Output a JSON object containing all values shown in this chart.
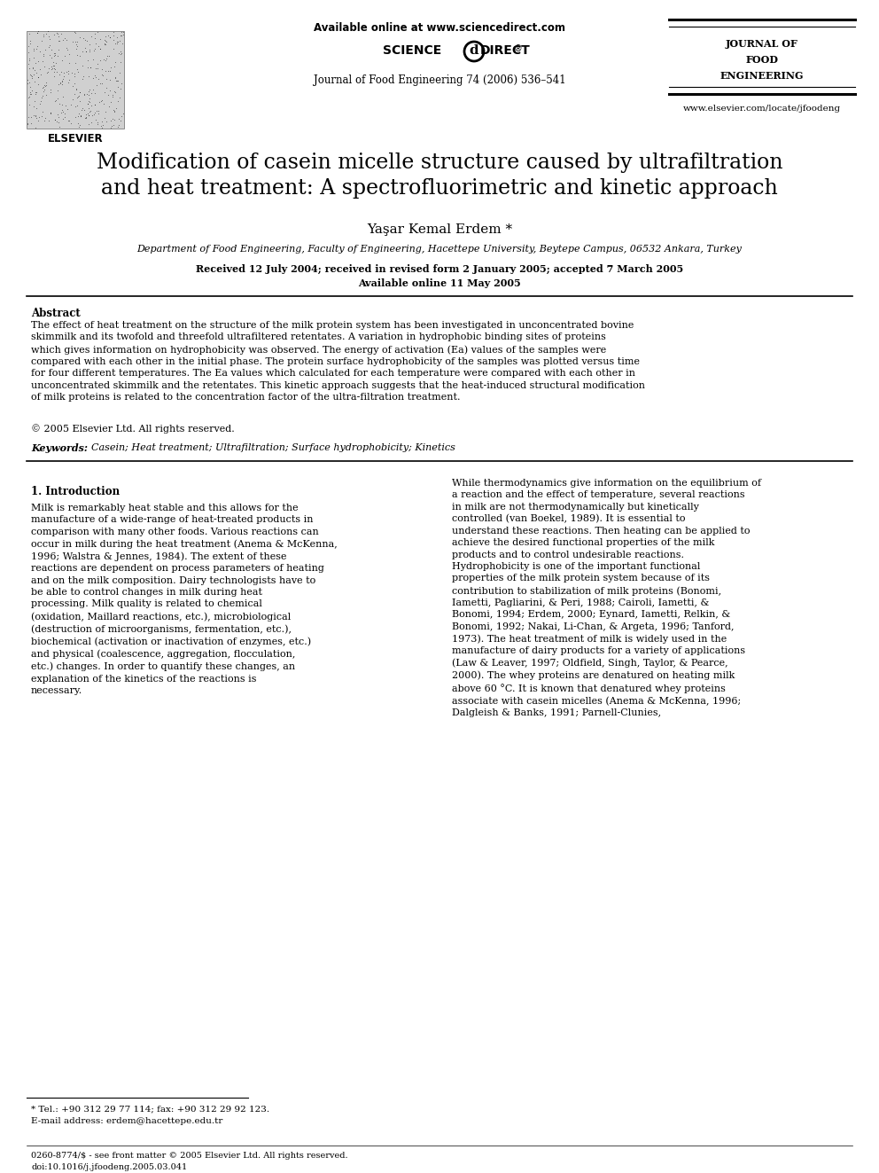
{
  "bg_color": "#ffffff",
  "header": {
    "available_online": "Available online at www.sciencedirect.com",
    "journal_name_line1": "Journal of Food Engineering 74 (2006) 536–541",
    "journal_title_line1": "JOURNAL OF",
    "journal_title_line2": "FOOD",
    "journal_title_line3": "ENGINEERING",
    "website": "www.elsevier.com/locate/jfoodeng",
    "elsevier_label": "ELSEVIER"
  },
  "title": "Modification of casein micelle structure caused by ultrafiltration\nand heat treatment: A spectrofluorimetric and kinetic approach",
  "author": "Yaşar Kemal Erdem *",
  "affiliation": "Department of Food Engineering, Faculty of Engineering, Hacettepe University, Beytepe Campus, 06532 Ankara, Turkey",
  "received": "Received 12 July 2004; received in revised form 2 January 2005; accepted 7 March 2005",
  "available": "Available online 11 May 2005",
  "abstract_title": "Abstract",
  "abstract_text": "The effect of heat treatment on the structure of the milk protein system has been investigated in unconcentrated bovine skimmilk and its twofold and threefold ultrafiltered retentates. A variation in hydrophobic binding sites of proteins which gives information on hydrophobicity was observed. The energy of activation (Ea) values of the samples were compared with each other in the initial phase. The protein surface hydrophobicity of the samples was plotted versus time for four different temperatures. The Ea values which calculated for each temperature were compared with each other in unconcentrated skimmilk and the retentates. This kinetic approach suggests that the heat-induced structural modification of milk proteins is related to the concentration factor of the ultra-filtration treatment.",
  "copyright": "© 2005 Elsevier Ltd. All rights reserved.",
  "keywords_label": "Keywords:",
  "keywords": "Casein; Heat treatment; Ultrafiltration; Surface hydrophobicity; Kinetics",
  "section1_title": "1. Introduction",
  "section1_left": "Milk is remarkably heat stable and this allows for the manufacture of a wide-range of heat-treated products in comparison with many other foods. Various reactions can occur in milk during the heat treatment (Anema & McKenna, 1996; Walstra & Jennes, 1984). The extent of these reactions are dependent on process parameters of heating and on the milk composition. Dairy technologists have to be able to control changes in milk during heat processing. Milk quality is related to chemical (oxidation, Maillard reactions, etc.), microbiological (destruction of microorganisms, fermentation, etc.), biochemical (activation or inactivation of enzymes, etc.) and physical (coalescence, aggregation, flocculation, etc.) changes. In order to quantify these changes, an explanation of the kinetics of the reactions is necessary.",
  "section1_right": "While thermodynamics give information on the equilibrium of a reaction and the effect of temperature, several reactions in milk are not thermodynamically but kinetically controlled (van Boekel, 1989). It is essential to understand these reactions. Then heating can be applied to achieve the desired functional properties of the milk products and to control undesirable reactions. Hydrophobicity is one of the important functional properties of the milk protein system because of its contribution to stabilization of milk proteins (Bonomi, Iametti, Pagliarini, & Peri, 1988; Cairoli, Iametti, & Bonomi, 1994; Erdem, 2000; Eynard, Iametti, Relkin, & Bonomi, 1992; Nakai, Li-Chan, & Argeta, 1996; Tanford, 1973).\n    The heat treatment of milk is widely used in the manufacture of dairy products for a variety of applications (Law & Leaver, 1997; Oldfield, Singh, Taylor, & Pearce, 2000). The whey proteins are denatured on heating milk above 60 °C. It is known that denatured whey proteins associate with casein micelles (Anema & McKenna, 1996; Dalgleish & Banks, 1991; Parnell-Clunies,",
  "footnote_line1": "* Tel.: +90 312 29 77 114; fax: +90 312 29 92 123.",
  "footnote_line2": "E-mail address: erdem@hacettepe.edu.tr",
  "footer_left": "0260-8774/$ - see front matter © 2005 Elsevier Ltd. All rights reserved.",
  "footer_doi": "doi:10.1016/j.jfoodeng.2005.03.041"
}
